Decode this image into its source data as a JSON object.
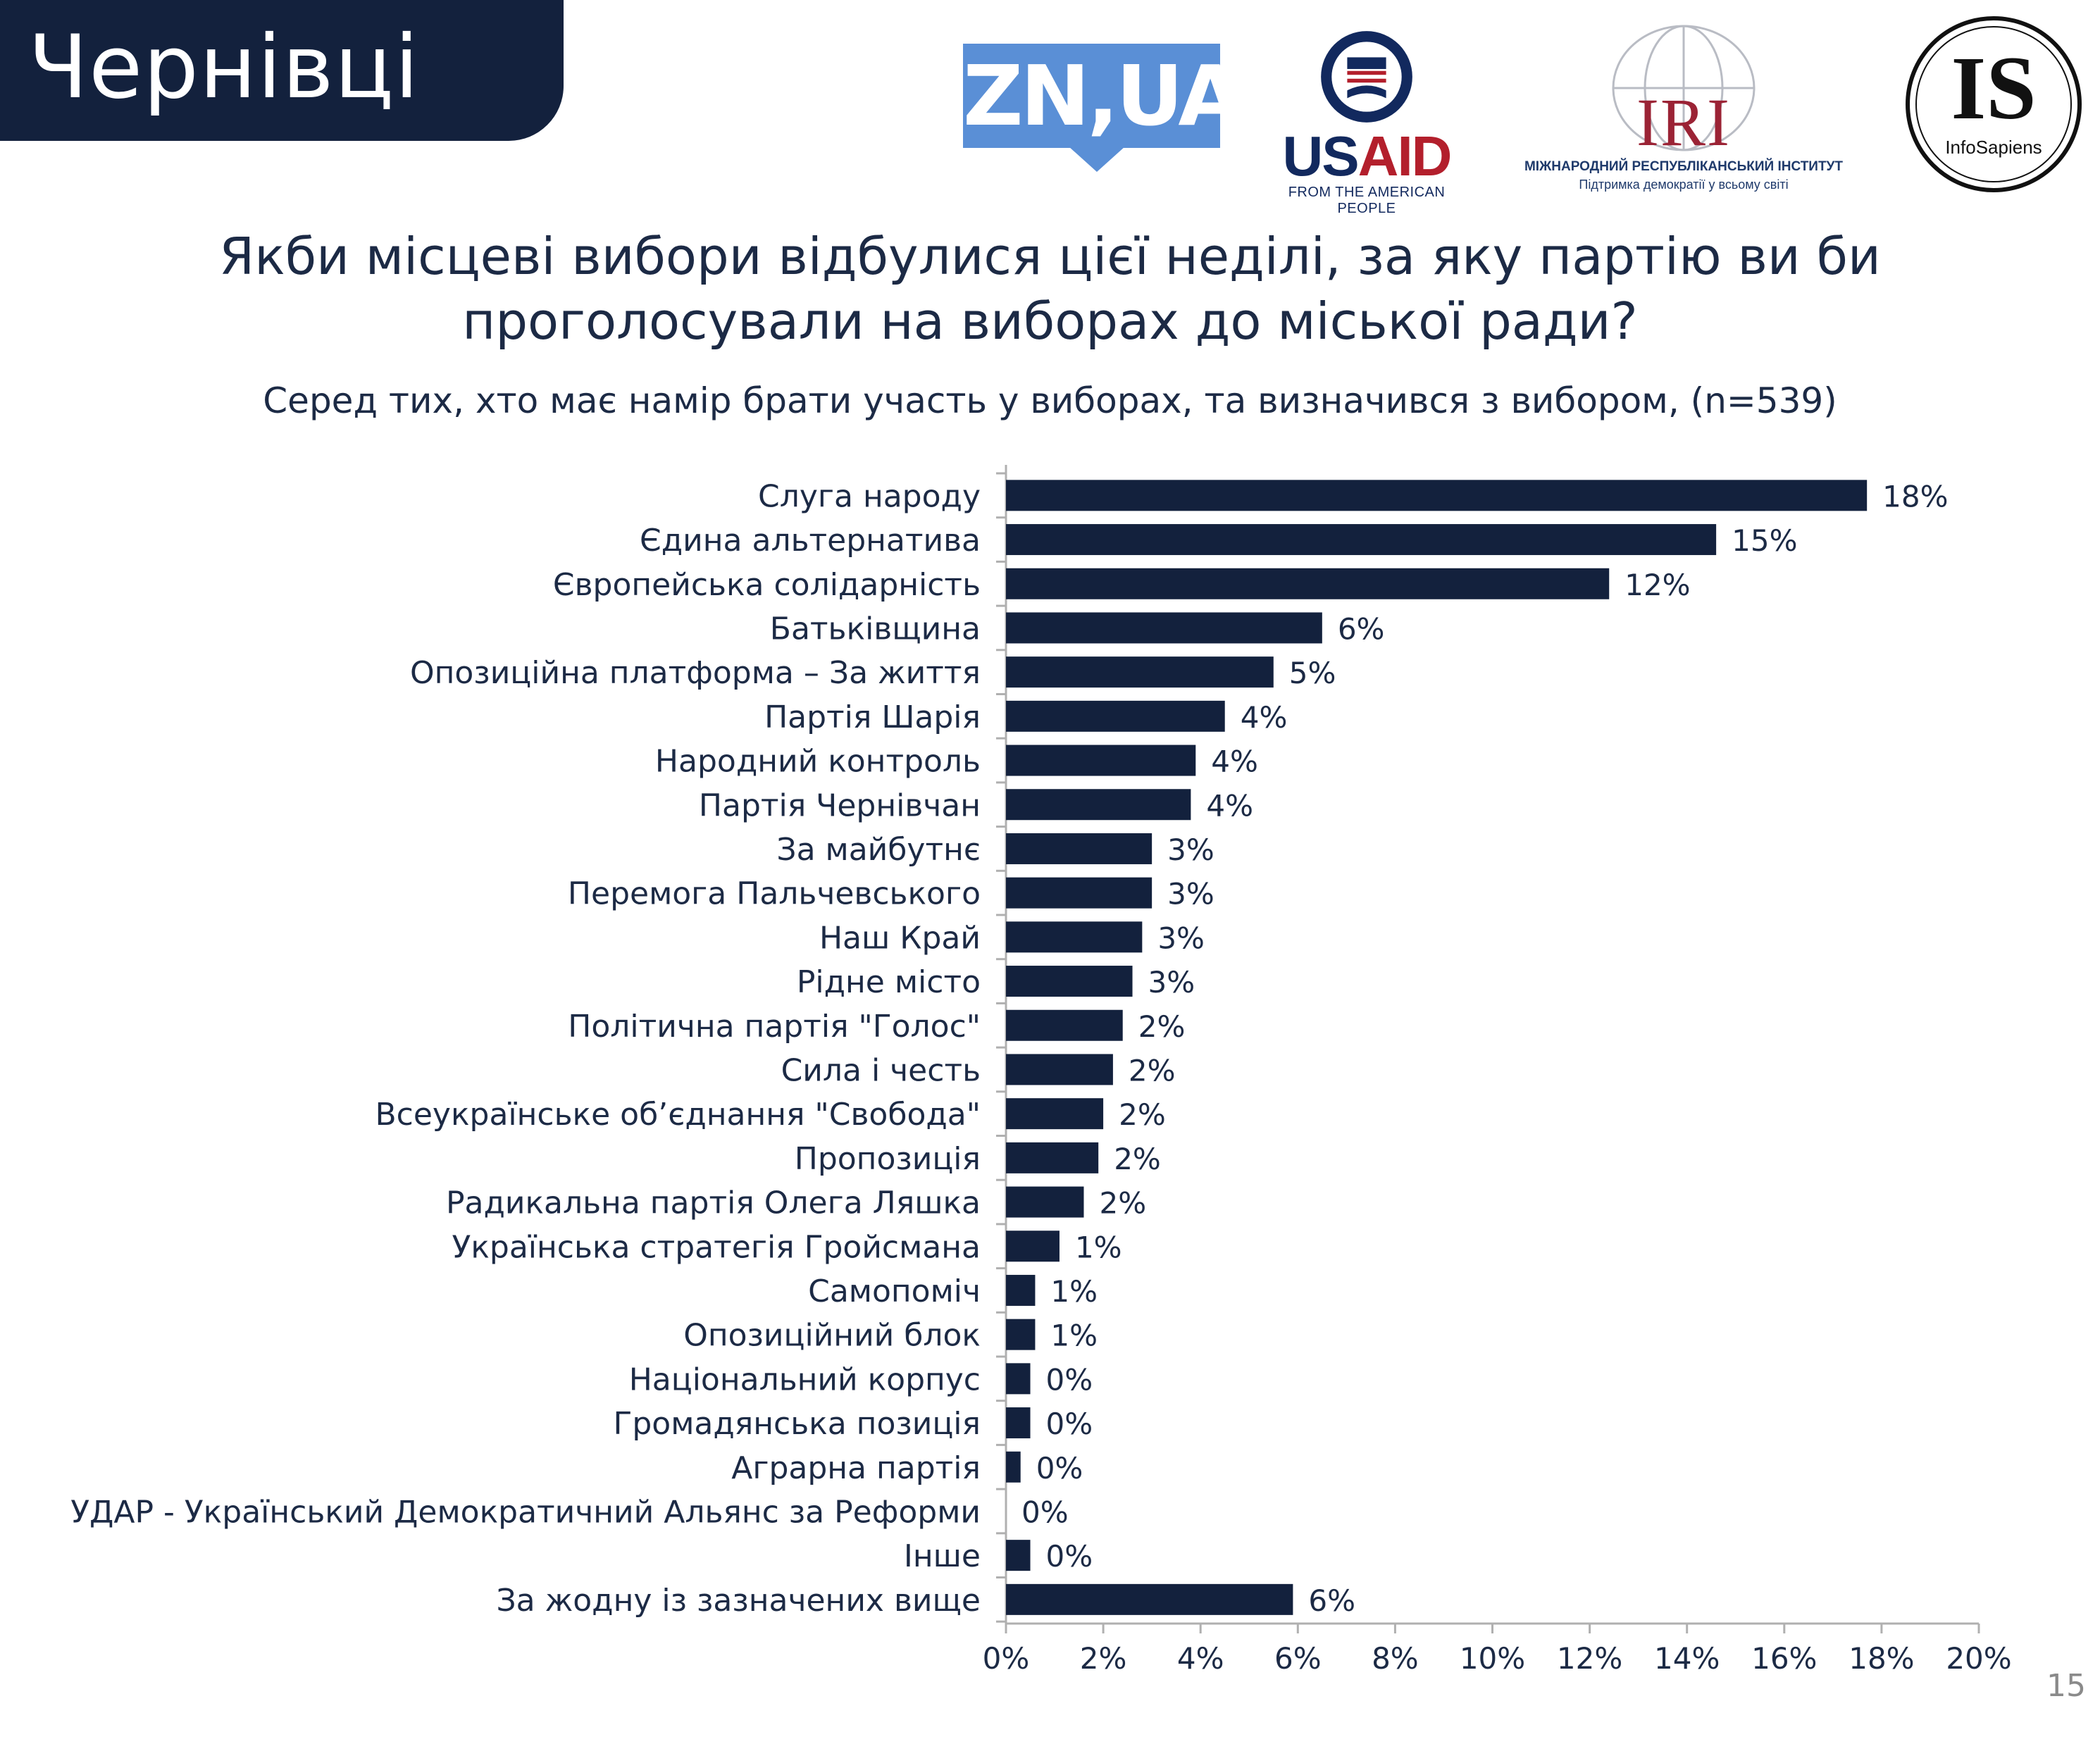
{
  "header": {
    "city": "Чернівці"
  },
  "logos": {
    "zn": "ZN,UA",
    "usaid_us": "US",
    "usaid_aid": "AID",
    "usaid_tagline": "FROM THE AMERICAN PEOPLE",
    "iri_name": "IRI",
    "iri_sub1": "МІЖНАРОДНИЙ РЕСПУБЛІКАНСЬКИЙ ІНСТИТУТ",
    "iri_sub2": "Підтримка демократії у всьому світі",
    "is_mark": "IS",
    "is_name": "InfoSapiens"
  },
  "page_number": "15",
  "chart_data": {
    "type": "bar",
    "orientation": "horizontal",
    "title": "Якби місцеві вибори відбулися цієї неділі, за яку партію ви би проголосували на виборах до міської ради?",
    "title_lines": [
      "Якби місцеві вибори відбулися цієї неділі, за яку партію ви би",
      "проголосували на виборах до міської ради?"
    ],
    "subtitle": "Серед тих, хто має намір брати участь у виборах, та визначився з вибором, (n=539)",
    "categories": [
      "Слуга народу",
      "Єдина альтернатива",
      "Європейська солідарність",
      "Батьківщина",
      "Опозиційна платформа – За життя",
      "Партія Шарія",
      "Народний контроль",
      "Партія Чернівчан",
      "За майбутнє",
      "Перемога Пальчевського",
      "Наш Край",
      "Рідне місто",
      "Політична партія \"Голос\"",
      "Сила і честь",
      "Всеукраїнське об’єднання \"Свобода\"",
      "Пропозиція",
      "Радикальна партія Олега Ляшка",
      "Українська стратегія Гройсмана",
      "Самопоміч",
      "Опозиційний блок",
      "Національний корпус",
      "Громадянська позиція",
      "Аграрна партія",
      "УДАР - Український Демократичний Альянс за Реформи",
      "Інше",
      "За жодну із зазначених вище"
    ],
    "values": [
      17.7,
      14.6,
      12.4,
      6.5,
      5.5,
      4.5,
      3.9,
      3.8,
      3.0,
      3.0,
      2.8,
      2.6,
      2.4,
      2.2,
      2.0,
      1.9,
      1.6,
      1.1,
      0.6,
      0.6,
      0.5,
      0.5,
      0.3,
      0.0,
      0.5,
      5.9
    ],
    "value_labels": [
      "18%",
      "15%",
      "12%",
      "6%",
      "5%",
      "4%",
      "4%",
      "4%",
      "3%",
      "3%",
      "3%",
      "3%",
      "2%",
      "2%",
      "2%",
      "2%",
      "2%",
      "1%",
      "1%",
      "1%",
      "0%",
      "0%",
      "0%",
      "0%",
      "0%",
      "6%"
    ],
    "x_ticks": [
      "0%",
      "2%",
      "4%",
      "6%",
      "8%",
      "10%",
      "12%",
      "14%",
      "16%",
      "18%",
      "20%"
    ],
    "xlim": [
      0,
      20
    ],
    "xlabel": "",
    "ylabel": "",
    "bar_color": "#13213d",
    "grid": false,
    "legend": "none"
  }
}
